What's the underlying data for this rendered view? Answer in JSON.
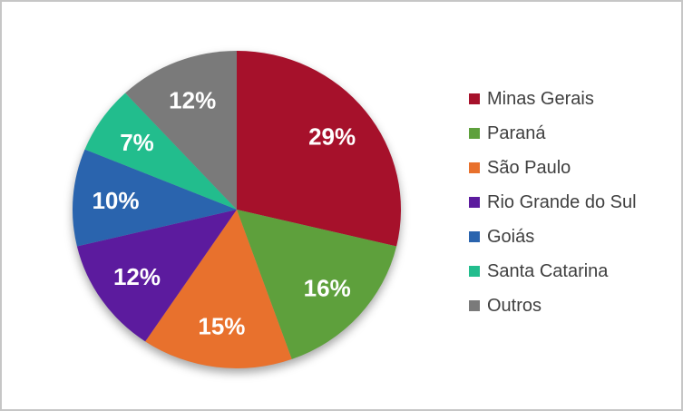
{
  "window": {
    "background_color": "#FFFFFF",
    "frame_border_color": "#C6C6C6"
  },
  "chart_data": {
    "type": "pie",
    "title": "",
    "categories": [
      "Minas Gerais",
      "Paraná",
      "São Paulo",
      "Rio Grande do Sul",
      "Goiás",
      "Santa Catarina",
      "Outros"
    ],
    "values": [
      29,
      16,
      15,
      12,
      10,
      7,
      12
    ],
    "data_labels": [
      "29%",
      "16%",
      "15%",
      "12%",
      "10%",
      "7%",
      "12%"
    ],
    "colors": [
      "#A6112B",
      "#5EA03C",
      "#E8712D",
      "#5C1B9E",
      "#2A64AE",
      "#22BD8D",
      "#7A7A7A"
    ],
    "start_angle_deg": 0,
    "direction": "clockwise",
    "legend_position": "right",
    "data_label_color": "#FFFFFF",
    "legend_text_color": "#404040",
    "grid": "off"
  }
}
